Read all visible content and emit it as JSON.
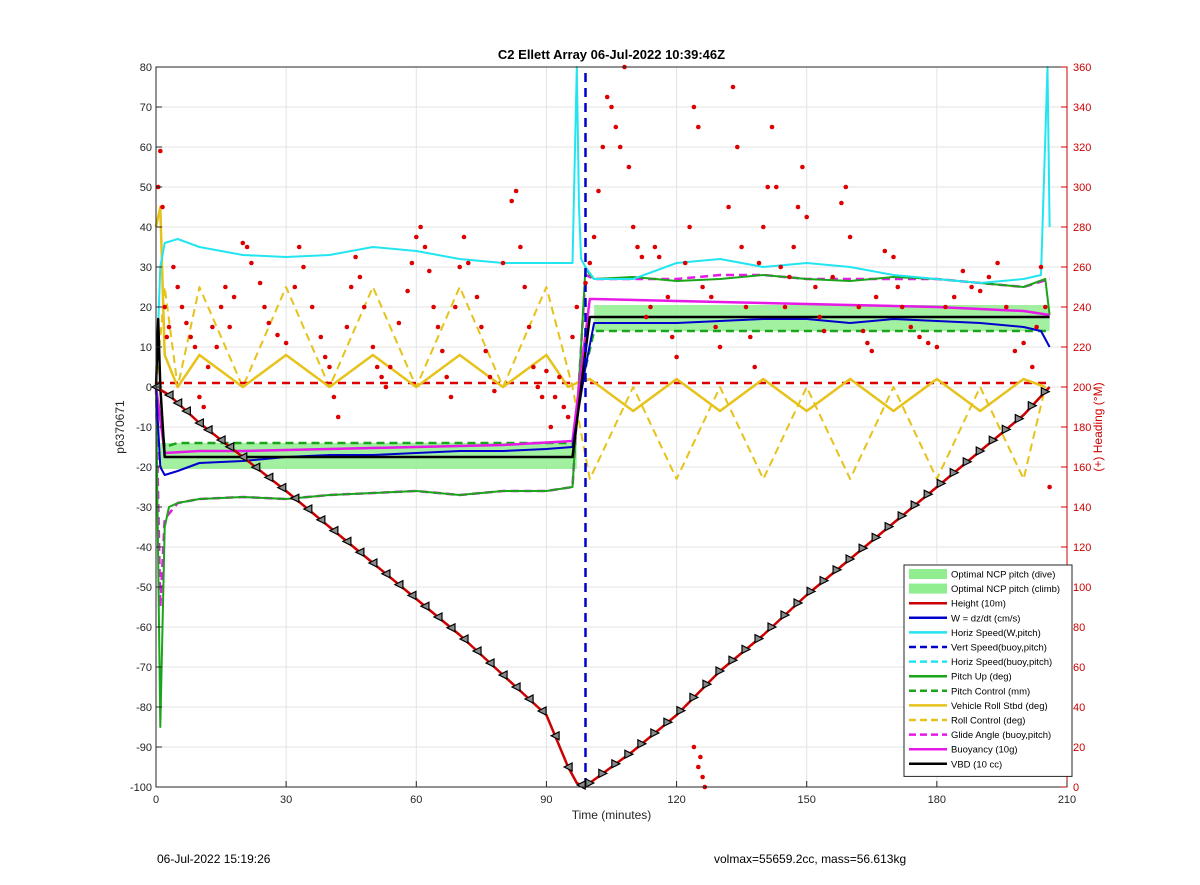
{
  "chart_data": {
    "type": "line",
    "title": "C2 Ellett Array 06-Jul-2022 10:39:46Z",
    "xlabel": "Time (minutes)",
    "ylabel_left": "p6370671",
    "ylabel_right": "(+) Heading (°M)",
    "xlim": [
      0,
      210
    ],
    "ylim_left": [
      -100,
      80
    ],
    "ylim_right": [
      0,
      360
    ],
    "x_ticks": [
      0,
      30,
      60,
      90,
      120,
      150,
      180,
      210
    ],
    "y_ticks_left": [
      80,
      70,
      60,
      50,
      40,
      30,
      20,
      10,
      0,
      -10,
      -20,
      -30,
      -40,
      -50,
      -60,
      -70,
      -80,
      -90,
      -100
    ],
    "y_ticks_right": [
      360,
      340,
      320,
      300,
      280,
      260,
      240,
      220,
      200,
      180,
      160,
      140,
      120,
      100,
      80,
      60,
      40,
      20,
      0
    ],
    "grid": true,
    "legend_position": "bottom-right",
    "colors": {
      "optimal_pitch": "#90ee90",
      "height": "#cc0000",
      "w": "#0000cc",
      "horiz_speed": "#22e5f0",
      "vert_speed_buoy": "#0000cc",
      "pitch": "#1aa51a",
      "roll": "#e6c21a",
      "glide": "#e619e6",
      "buoyancy": "#e619e6",
      "vbd": "#000000",
      "heading": "#dd0000"
    },
    "legend": [
      {
        "label": "Optimal NCP pitch (dive)",
        "kind": "patch",
        "color": "#90ee90"
      },
      {
        "label": "Optimal NCP pitch (climb)",
        "kind": "patch",
        "color": "#90ee90"
      },
      {
        "label": "Height (10m)",
        "kind": "solid",
        "color": "#cc0000"
      },
      {
        "label": "W = dz/dt (cm/s)",
        "kind": "solid",
        "color": "#0000cc"
      },
      {
        "label": "Horiz Speed(W,pitch)",
        "kind": "solid",
        "color": "#22e5f0"
      },
      {
        "label": "Vert Speed(buoy,pitch)",
        "kind": "dashed",
        "color": "#0000cc"
      },
      {
        "label": "Horiz Speed(buoy,pitch)",
        "kind": "dashed",
        "color": "#22e5f0"
      },
      {
        "label": "Pitch Up (deg)",
        "kind": "solid",
        "color": "#1aa51a"
      },
      {
        "label": "Pitch Control (mm)",
        "kind": "dashed",
        "color": "#1aa51a"
      },
      {
        "label": "Vehicle Roll Stbd (deg)",
        "kind": "solid",
        "color": "#e6c21a"
      },
      {
        "label": "Roll Control (deg)",
        "kind": "dashed",
        "color": "#e6c21a"
      },
      {
        "label": "Glide Angle (buoy,pitch)",
        "kind": "dashed",
        "color": "#e619e6"
      },
      {
        "label": "Buoyancy (10g)",
        "kind": "solid",
        "color": "#e619e6"
      },
      {
        "label": "VBD (10 cc)",
        "kind": "solid",
        "color": "#000000"
      }
    ],
    "optimal_pitch_bands": [
      {
        "x": [
          1,
          97
        ],
        "y": [
          -20.5,
          -14
        ]
      },
      {
        "x": [
          101,
          206
        ],
        "y": [
          14,
          20.5
        ]
      }
    ],
    "series": [
      {
        "name": "Height (10m)",
        "x": [
          0,
          3,
          10,
          20,
          30,
          40,
          50,
          60,
          70,
          80,
          90,
          95,
          97,
          99,
          100,
          110,
          120,
          130,
          140,
          150,
          160,
          170,
          180,
          190,
          200,
          206
        ],
        "y": [
          0,
          -2,
          -9,
          -17.5,
          -26,
          -35,
          -44,
          -53,
          -62,
          -72,
          -82,
          -95,
          -99,
          -100,
          -99,
          -91,
          -82,
          -71,
          -62,
          -52,
          -43,
          -34,
          -25,
          -16,
          -7,
          0
        ]
      },
      {
        "name": "W = dz/dt (cm/s)",
        "x": [
          0,
          1,
          2,
          5,
          10,
          20,
          30,
          40,
          50,
          60,
          70,
          80,
          90,
          96,
          99,
          101,
          110,
          120,
          130,
          140,
          150,
          160,
          170,
          180,
          190,
          200,
          204,
          206
        ],
        "y": [
          0,
          -20,
          -22,
          -21,
          -19,
          -18.5,
          -17.5,
          -17,
          -17,
          -16.5,
          -16,
          -16,
          -15.5,
          -15,
          5,
          16,
          16,
          16,
          16.5,
          17,
          17,
          16,
          17,
          16.5,
          16,
          15,
          14,
          10
        ]
      },
      {
        "name": "Horiz Speed(W,pitch)",
        "x": [
          0,
          1,
          2,
          5,
          10,
          20,
          30,
          40,
          50,
          60,
          70,
          80,
          90,
          96,
          97,
          97.5,
          98,
          99,
          101,
          110,
          120,
          130,
          140,
          150,
          160,
          170,
          180,
          190,
          200,
          204,
          205.5,
          206
        ],
        "y": [
          0,
          30,
          36,
          37,
          35,
          33,
          32.5,
          33,
          35,
          34,
          32,
          31,
          31,
          31,
          80,
          45,
          32,
          30,
          27,
          27,
          31,
          32,
          30,
          31,
          30,
          28,
          27,
          26,
          27,
          28,
          80,
          40
        ]
      },
      {
        "name": "Vert Speed(buoy,pitch)",
        "x": [
          99,
          99
        ],
        "y": [
          -100,
          80
        ]
      },
      {
        "name": "Pitch Up (deg)",
        "x": [
          0,
          1,
          1.5,
          2,
          3,
          5,
          10,
          20,
          30,
          40,
          50,
          60,
          70,
          80,
          90,
          96,
          98,
          99,
          100,
          101,
          110,
          120,
          130,
          140,
          150,
          160,
          170,
          180,
          190,
          200,
          205,
          206
        ],
        "y": [
          0,
          -85,
          -60,
          -35,
          -30,
          -29,
          -28,
          -27.5,
          -28,
          -27,
          -26.5,
          -26,
          -27,
          -26,
          -26,
          -25,
          10,
          30,
          28,
          27,
          27.5,
          26.5,
          27,
          28,
          27,
          26.5,
          27.5,
          27,
          26,
          25,
          27,
          18
        ]
      },
      {
        "name": "Pitch Control (mm)",
        "x": [
          0,
          2,
          5,
          96,
          98,
          101,
          206
        ],
        "y": [
          0,
          -15,
          -14,
          -14,
          0,
          14,
          14
        ]
      },
      {
        "name": "Vehicle Roll Stbd (deg)",
        "x": [
          0,
          1,
          2,
          5,
          10,
          20,
          30,
          40,
          50,
          60,
          70,
          80,
          90,
          95,
          97,
          100,
          110,
          120,
          130,
          140,
          150,
          160,
          170,
          180,
          190,
          200,
          205
        ],
        "y": [
          40,
          45,
          8,
          0,
          8,
          0,
          8,
          0,
          8,
          0,
          8,
          0,
          8,
          0,
          1,
          2,
          -6,
          2,
          -6,
          2,
          -6,
          2,
          -6,
          2,
          -6,
          2,
          0
        ]
      },
      {
        "name": "Roll Control (deg)",
        "x": [
          0,
          2,
          5,
          10,
          20,
          30,
          40,
          50,
          60,
          70,
          80,
          90,
          96,
          100,
          110,
          120,
          130,
          140,
          150,
          160,
          170,
          180,
          190,
          200,
          205
        ],
        "y": [
          0,
          25,
          0,
          25,
          0,
          25,
          0,
          25,
          0,
          25,
          0,
          25,
          0,
          -23,
          0,
          -23,
          0,
          -23,
          0,
          -23,
          0,
          -23,
          0,
          -23,
          0
        ]
      },
      {
        "name": "Glide Angle (buoy,pitch)",
        "x": [
          0,
          1,
          2,
          5,
          10,
          20,
          30,
          40,
          50,
          60,
          70,
          80,
          90,
          96,
          99,
          101,
          110,
          120,
          130,
          140,
          150,
          160,
          170,
          180,
          190,
          200,
          206
        ],
        "y": [
          0,
          -55,
          -33,
          -29,
          -28,
          -27.5,
          -28,
          -27,
          -26.5,
          -26,
          -27,
          -26,
          -26,
          -25,
          28,
          27,
          27,
          27,
          28,
          28,
          27,
          27,
          27,
          27,
          26,
          25,
          27
        ]
      },
      {
        "name": "Buoyancy (10g)",
        "x": [
          0,
          2,
          10,
          20,
          40,
          60,
          80,
          96,
          100,
          101,
          120,
          140,
          160,
          180,
          200,
          206
        ],
        "y": [
          0,
          -16.5,
          -16,
          -16,
          -15.5,
          -15,
          -14.5,
          -13.5,
          22,
          22,
          21.5,
          21,
          20.5,
          20,
          19,
          18
        ]
      },
      {
        "name": "VBD (10 cc)",
        "x": [
          0,
          0.5,
          1,
          2,
          10,
          20,
          40,
          60,
          80,
          96,
          100,
          101,
          206
        ],
        "y": [
          0,
          17,
          0,
          -17.5,
          -17.5,
          -17.5,
          -17.5,
          -17.5,
          -17.5,
          -17.5,
          17.5,
          17.5,
          17.5
        ]
      },
      {
        "name": "Zero line",
        "x": [
          0,
          206
        ],
        "y": [
          1,
          1
        ]
      }
    ],
    "heading_points": [
      [
        0.5,
        300
      ],
      [
        1,
        318
      ],
      [
        1.5,
        290
      ],
      [
        2,
        240
      ],
      [
        2.5,
        225
      ],
      [
        3,
        230
      ],
      [
        4,
        260
      ],
      [
        5,
        250
      ],
      [
        6,
        240
      ],
      [
        7,
        232
      ],
      [
        8,
        225
      ],
      [
        9,
        220
      ],
      [
        10,
        195
      ],
      [
        11,
        190
      ],
      [
        12,
        210
      ],
      [
        13,
        230
      ],
      [
        14,
        220
      ],
      [
        15,
        240
      ],
      [
        16,
        250
      ],
      [
        17,
        230
      ],
      [
        18,
        245
      ],
      [
        20,
        272
      ],
      [
        21,
        270
      ],
      [
        22,
        262
      ],
      [
        24,
        252
      ],
      [
        25,
        240
      ],
      [
        26,
        232
      ],
      [
        28,
        226
      ],
      [
        30,
        222
      ],
      [
        32,
        250
      ],
      [
        33,
        270
      ],
      [
        34,
        260
      ],
      [
        36,
        240
      ],
      [
        38,
        225
      ],
      [
        39,
        215
      ],
      [
        40,
        210
      ],
      [
        41,
        195
      ],
      [
        42,
        185
      ],
      [
        44,
        230
      ],
      [
        45,
        250
      ],
      [
        46,
        265
      ],
      [
        47,
        255
      ],
      [
        48,
        240
      ],
      [
        50,
        220
      ],
      [
        51,
        210
      ],
      [
        52,
        205
      ],
      [
        53,
        200
      ],
      [
        54,
        210
      ],
      [
        56,
        232
      ],
      [
        58,
        248
      ],
      [
        59,
        262
      ],
      [
        60,
        275
      ],
      [
        61,
        280
      ],
      [
        62,
        270
      ],
      [
        63,
        258
      ],
      [
        64,
        240
      ],
      [
        65,
        230
      ],
      [
        66,
        218
      ],
      [
        67,
        205
      ],
      [
        68,
        195
      ],
      [
        69,
        240
      ],
      [
        70,
        260
      ],
      [
        71,
        275
      ],
      [
        72,
        262
      ],
      [
        74,
        245
      ],
      [
        75,
        230
      ],
      [
        76,
        218
      ],
      [
        77,
        205
      ],
      [
        78,
        198
      ],
      [
        80,
        262
      ],
      [
        82,
        293
      ],
      [
        83,
        298
      ],
      [
        84,
        270
      ],
      [
        85,
        250
      ],
      [
        86,
        230
      ],
      [
        87,
        210
      ],
      [
        88,
        200
      ],
      [
        89,
        195
      ],
      [
        90,
        208
      ],
      [
        91,
        180
      ],
      [
        92,
        195
      ],
      [
        93,
        205
      ],
      [
        94,
        190
      ],
      [
        95,
        185
      ],
      [
        96,
        225
      ],
      [
        97,
        240
      ],
      [
        99,
        252
      ],
      [
        100,
        262
      ],
      [
        101,
        275
      ],
      [
        102,
        298
      ],
      [
        103,
        320
      ],
      [
        104,
        345
      ],
      [
        105,
        340
      ],
      [
        106,
        330
      ],
      [
        107,
        320
      ],
      [
        108,
        360
      ],
      [
        109,
        310
      ],
      [
        110,
        280
      ],
      [
        111,
        270
      ],
      [
        112,
        265
      ],
      [
        113,
        235
      ],
      [
        114,
        240
      ],
      [
        115,
        270
      ],
      [
        116,
        265
      ],
      [
        118,
        245
      ],
      [
        119,
        225
      ],
      [
        120,
        215
      ],
      [
        122,
        262
      ],
      [
        123,
        280
      ],
      [
        124,
        340
      ],
      [
        125,
        330
      ],
      [
        126,
        250
      ],
      [
        128,
        245
      ],
      [
        129,
        230
      ],
      [
        130,
        220
      ],
      [
        132,
        290
      ],
      [
        133,
        350
      ],
      [
        134,
        320
      ],
      [
        135,
        270
      ],
      [
        136,
        240
      ],
      [
        137,
        225
      ],
      [
        138,
        210
      ],
      [
        139,
        262
      ],
      [
        140,
        280
      ],
      [
        141,
        300
      ],
      [
        142,
        330
      ],
      [
        143,
        300
      ],
      [
        144,
        260
      ],
      [
        145,
        240
      ],
      [
        146,
        255
      ],
      [
        147,
        270
      ],
      [
        148,
        290
      ],
      [
        149,
        310
      ],
      [
        150,
        285
      ],
      [
        152,
        250
      ],
      [
        153,
        235
      ],
      [
        154,
        228
      ],
      [
        156,
        255
      ],
      [
        158,
        292
      ],
      [
        159,
        300
      ],
      [
        160,
        275
      ],
      [
        162,
        240
      ],
      [
        163,
        228
      ],
      [
        164,
        222
      ],
      [
        165,
        218
      ],
      [
        166,
        245
      ],
      [
        168,
        268
      ],
      [
        170,
        265
      ],
      [
        171,
        250
      ],
      [
        172,
        240
      ],
      [
        174,
        230
      ],
      [
        176,
        225
      ],
      [
        178,
        222
      ],
      [
        180,
        220
      ],
      [
        182,
        240
      ],
      [
        184,
        245
      ],
      [
        186,
        258
      ],
      [
        188,
        250
      ],
      [
        190,
        248
      ],
      [
        192,
        255
      ],
      [
        194,
        262
      ],
      [
        196,
        240
      ],
      [
        198,
        218
      ],
      [
        200,
        222
      ],
      [
        202,
        210
      ],
      [
        203,
        230
      ],
      [
        204,
        260
      ],
      [
        205,
        240
      ],
      [
        206,
        150
      ],
      [
        124,
        20
      ],
      [
        125,
        10
      ],
      [
        126,
        5
      ],
      [
        126.5,
        0
      ],
      [
        125.5,
        15
      ]
    ],
    "height_markers_x": [
      0,
      3,
      5,
      7,
      10,
      12,
      15,
      17,
      20,
      23,
      26,
      29,
      32,
      35,
      38,
      41,
      44,
      47,
      50,
      53,
      56,
      59,
      62,
      65,
      68,
      71,
      74,
      77,
      80,
      83,
      86,
      89,
      92,
      95,
      98,
      100,
      103,
      106,
      109,
      112,
      115,
      118,
      121,
      124,
      127,
      130,
      133,
      136,
      139,
      142,
      145,
      148,
      151,
      154,
      157,
      160,
      163,
      166,
      169,
      172,
      175,
      178,
      181,
      184,
      187,
      190,
      193,
      196,
      199,
      202,
      205
    ]
  },
  "footer": {
    "left": "06-Jul-2022 15:19:26",
    "right": "volmax=55659.2cc, mass=56.613kg"
  }
}
